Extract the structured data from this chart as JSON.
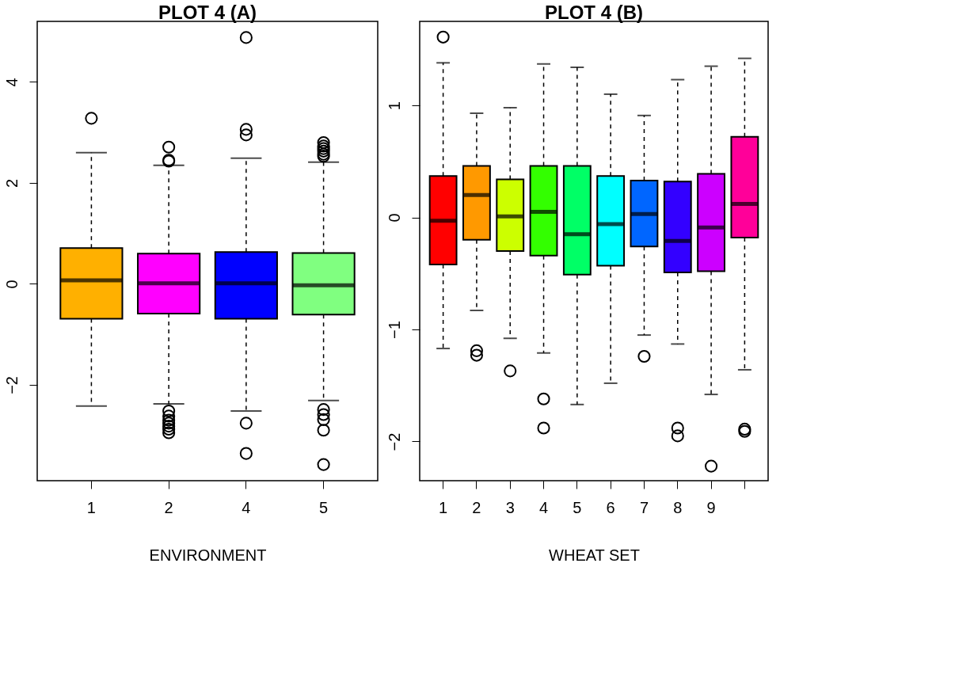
{
  "chart_data": [
    {
      "type": "box",
      "title": "PLOT 4 (A)",
      "xlabel": "ENVIRONMENT",
      "categories": [
        "1",
        "2",
        "4",
        "5"
      ],
      "colors": [
        "#ffb000",
        "#ff00ff",
        "#0000ff",
        "#80ff80"
      ],
      "ylim": [
        -3.9,
        5.2
      ],
      "yticks": [
        -2,
        0,
        2,
        4
      ],
      "boxes": [
        {
          "low": -2.42,
          "q1": -0.69,
          "median": 0.07,
          "q3": 0.71,
          "high": 2.6,
          "outliers": [
            3.28
          ]
        },
        {
          "low": -2.38,
          "q1": -0.59,
          "median": 0.01,
          "q3": 0.6,
          "high": 2.35,
          "outliers": [
            2.71,
            2.45,
            2.43,
            -2.52,
            -2.62,
            -2.7,
            -2.76,
            -2.82,
            -2.88,
            -2.95
          ]
        },
        {
          "low": -2.52,
          "q1": -0.69,
          "median": 0.01,
          "q3": 0.63,
          "high": 2.49,
          "outliers": [
            4.88,
            3.06,
            2.95,
            -2.76,
            -3.36
          ]
        },
        {
          "low": -2.31,
          "q1": -0.61,
          "median": -0.03,
          "q3": 0.61,
          "high": 2.41,
          "outliers": [
            2.8,
            2.73,
            2.68,
            2.63,
            2.57,
            2.53,
            -2.49,
            -2.59,
            -2.69,
            -2.9,
            -3.58
          ]
        }
      ]
    },
    {
      "type": "box",
      "title": "PLOT 4 (B)",
      "xlabel": "WHEAT SET",
      "categories": [
        "1",
        "2",
        "3",
        "4",
        "5",
        "6",
        "7",
        "8",
        "9",
        null
      ],
      "colors": [
        "#ff0000",
        "#ff9900",
        "#ccff00",
        "#33ff00",
        "#00ff66",
        "#00ffff",
        "#0066ff",
        "#3300ff",
        "#cc00ff",
        "#ff0099"
      ],
      "ylim": [
        -2.35,
        1.75
      ],
      "yticks": [
        -2,
        -1,
        0,
        1
      ],
      "boxes": [
        {
          "low": -1.17,
          "q1": -0.42,
          "median": -0.03,
          "q3": 0.37,
          "high": 1.38,
          "outliers": [
            1.61
          ]
        },
        {
          "low": -0.83,
          "q1": -0.2,
          "median": 0.2,
          "q3": 0.46,
          "high": 0.93,
          "outliers": [
            -1.19,
            -1.23
          ]
        },
        {
          "low": -1.08,
          "q1": -0.3,
          "median": 0.01,
          "q3": 0.34,
          "high": 0.98,
          "outliers": [
            -1.37
          ]
        },
        {
          "low": -1.21,
          "q1": -0.34,
          "median": 0.05,
          "q3": 0.46,
          "high": 1.37,
          "outliers": [
            -1.62,
            -1.88
          ]
        },
        {
          "low": -1.67,
          "q1": -0.51,
          "median": -0.15,
          "q3": 0.46,
          "high": 1.34
        },
        {
          "low": -1.48,
          "q1": -0.43,
          "median": -0.06,
          "q3": 0.37,
          "high": 1.1
        },
        {
          "low": -1.05,
          "q1": -0.26,
          "median": 0.03,
          "q3": 0.33,
          "high": 0.91,
          "outliers": [
            -1.24
          ]
        },
        {
          "low": -1.13,
          "q1": -0.49,
          "median": -0.21,
          "q3": 0.32,
          "high": 1.23,
          "outliers": [
            -1.88,
            -1.95
          ]
        },
        {
          "low": -1.58,
          "q1": -0.48,
          "median": -0.09,
          "q3": 0.39,
          "high": 1.35,
          "outliers": [
            -2.22
          ]
        },
        {
          "low": -1.36,
          "q1": -0.18,
          "median": 0.12,
          "q3": 0.72,
          "high": 1.42,
          "outliers": [
            -1.89,
            -1.91
          ]
        }
      ]
    }
  ]
}
